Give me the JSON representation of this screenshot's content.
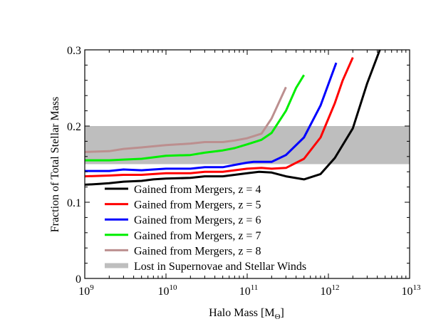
{
  "chart_data": {
    "type": "line",
    "xscale": "log",
    "xlim": [
      1000000000.0,
      10000000000000.0
    ],
    "ylim": [
      0,
      0.3
    ],
    "xlabel": "Halo Mass [M",
    "xlabel_sub": "Θ",
    "xlabel_end": "]",
    "ylabel": "Fraction of Total Stellar Mass",
    "x_ticks": [
      {
        "value": 1000000000.0,
        "base": "10",
        "exp": "9"
      },
      {
        "value": 10000000000.0,
        "base": "10",
        "exp": "10"
      },
      {
        "value": 100000000000.0,
        "base": "10",
        "exp": "11"
      },
      {
        "value": 1000000000000.0,
        "base": "10",
        "exp": "12"
      },
      {
        "value": 10000000000000.0,
        "base": "10",
        "exp": "13"
      }
    ],
    "y_ticks": [
      {
        "value": 0,
        "label": "0"
      },
      {
        "value": 0.1,
        "label": "0.1"
      },
      {
        "value": 0.2,
        "label": "0.2"
      },
      {
        "value": 0.3,
        "label": "0.3"
      }
    ],
    "band": {
      "name": "Lost in Supernovae and Stellar Winds",
      "ymin": 0.15,
      "ymax": 0.2,
      "color": "#bebebe"
    },
    "series": [
      {
        "name": "Gained from Mergers, z = 4",
        "color": "#000000",
        "x": [
          1000000000.0,
          1500000000.0,
          2000000000.0,
          3000000000.0,
          5000000000.0,
          7000000000.0,
          10000000000.0,
          20000000000.0,
          30000000000.0,
          50000000000.0,
          70000000000.0,
          100000000000.0,
          140000000000.0,
          200000000000.0,
          300000000000.0,
          500000000000.0,
          800000000000.0,
          1200000000000.0,
          2000000000000.0,
          3000000000000.0,
          4300000000000.0
        ],
        "y": [
          0.123,
          0.124,
          0.125,
          0.127,
          0.128,
          0.13,
          0.131,
          0.132,
          0.134,
          0.134,
          0.136,
          0.138,
          0.14,
          0.139,
          0.134,
          0.13,
          0.137,
          0.158,
          0.197,
          0.256,
          0.3
        ]
      },
      {
        "name": "Gained from Mergers, z = 5",
        "color": "#ff0000",
        "x": [
          1000000000.0,
          2000000000.0,
          3000000000.0,
          5000000000.0,
          10000000000.0,
          20000000000.0,
          30000000000.0,
          50000000000.0,
          70000000000.0,
          100000000000.0,
          150000000000.0,
          200000000000.0,
          300000000000.0,
          500000000000.0,
          800000000000.0,
          1200000000000.0,
          1500000000000.0,
          2000000000000.0
        ],
        "y": [
          0.134,
          0.135,
          0.136,
          0.136,
          0.138,
          0.138,
          0.14,
          0.14,
          0.142,
          0.144,
          0.145,
          0.144,
          0.145,
          0.157,
          0.185,
          0.23,
          0.26,
          0.29
        ]
      },
      {
        "name": "Gained from Mergers, z = 6",
        "color": "#0000ff",
        "x": [
          1000000000.0,
          2000000000.0,
          3000000000.0,
          5000000000.0,
          7000000000.0,
          10000000000.0,
          20000000000.0,
          30000000000.0,
          50000000000.0,
          70000000000.0,
          100000000000.0,
          120000000000.0,
          200000000000.0,
          300000000000.0,
          500000000000.0,
          800000000000.0,
          1000000000000.0,
          1250000000000.0
        ],
        "y": [
          0.141,
          0.141,
          0.143,
          0.142,
          0.143,
          0.144,
          0.144,
          0.146,
          0.146,
          0.149,
          0.152,
          0.153,
          0.153,
          0.162,
          0.185,
          0.227,
          0.255,
          0.283
        ]
      },
      {
        "name": "Gained from Mergers, z = 7",
        "color": "#00ee00",
        "x": [
          1000000000.0,
          2000000000.0,
          3000000000.0,
          5000000000.0,
          10000000000.0,
          20000000000.0,
          30000000000.0,
          50000000000.0,
          70000000000.0,
          100000000000.0,
          150000000000.0,
          200000000000.0,
          300000000000.0,
          400000000000.0,
          500000000000.0
        ],
        "y": [
          0.155,
          0.155,
          0.156,
          0.157,
          0.161,
          0.162,
          0.165,
          0.168,
          0.171,
          0.176,
          0.182,
          0.191,
          0.22,
          0.25,
          0.267
        ]
      },
      {
        "name": "Gained from Mergers, z = 8",
        "color": "#bc8f8f",
        "x": [
          1000000000.0,
          2000000000.0,
          3000000000.0,
          5000000000.0,
          10000000000.0,
          20000000000.0,
          30000000000.0,
          50000000000.0,
          70000000000.0,
          100000000000.0,
          150000000000.0,
          200000000000.0,
          300000000000.0
        ],
        "y": [
          0.166,
          0.167,
          0.17,
          0.172,
          0.175,
          0.177,
          0.179,
          0.179,
          0.181,
          0.184,
          0.19,
          0.21,
          0.251
        ]
      }
    ],
    "legend_position": "lower-left"
  }
}
